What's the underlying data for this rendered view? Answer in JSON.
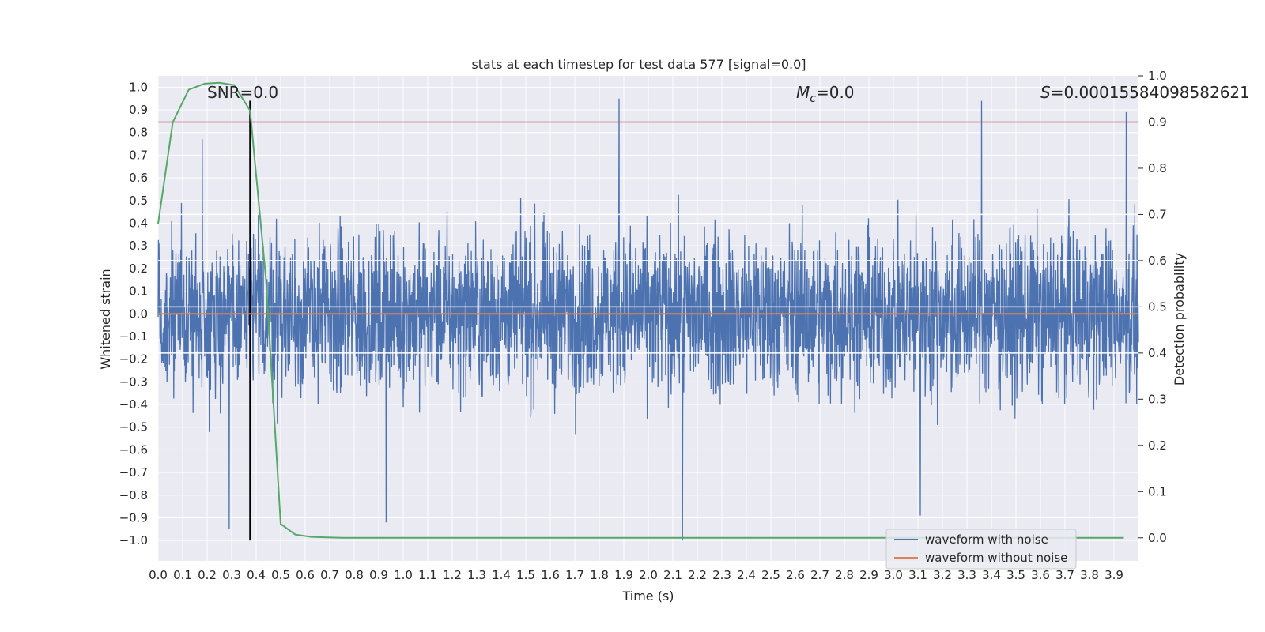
{
  "chart_data": {
    "type": "line",
    "title": "stats at each timestep for test data 577 [signal=0.0]",
    "xlabel": "Time (s)",
    "ylabel": "Whitened strain",
    "y2label": "Detection probability",
    "xlim": [
      0.0,
      4.0
    ],
    "ylim": [
      -1.09,
      1.05
    ],
    "y2lim": [
      -0.05,
      1.0
    ],
    "x_ticks": [
      "0.0",
      "0.1",
      "0.2",
      "0.3",
      "0.4",
      "0.5",
      "0.6",
      "0.7",
      "0.8",
      "0.9",
      "1.0",
      "1.1",
      "1.2",
      "1.3",
      "1.4",
      "1.5",
      "1.6",
      "1.7",
      "1.8",
      "1.9",
      "2.0",
      "2.1",
      "2.2",
      "2.3",
      "2.4",
      "2.5",
      "2.6",
      "2.7",
      "2.8",
      "2.9",
      "3.0",
      "3.1",
      "3.2",
      "3.3",
      "3.4",
      "3.5",
      "3.6",
      "3.7",
      "3.8",
      "3.9"
    ],
    "y_ticks": [
      "1.0",
      "0.9",
      "0.8",
      "0.7",
      "0.6",
      "0.5",
      "0.4",
      "0.3",
      "0.2",
      "0.1",
      "0.0",
      "−0.1",
      "−0.2",
      "−0.3",
      "−0.4",
      "−0.5",
      "−0.6",
      "−0.7",
      "−0.8",
      "−0.9",
      "−1.0"
    ],
    "y2_ticks": [
      "1.0",
      "0.9",
      "0.8",
      "0.7",
      "0.6",
      "0.5",
      "0.4",
      "0.3",
      "0.2",
      "0.1",
      "0.0"
    ],
    "grid": true,
    "legend_position": "lower-right",
    "annotations": {
      "snr": "SNR=0.0",
      "mc_symbol": "M",
      "mc_sub": "c",
      "mc_value": "=0.0",
      "s_symbol": "S",
      "s_value": "=0.00015584098582621"
    },
    "series": [
      {
        "name": "waveform with noise",
        "color": "#4c72b0",
        "axis": "left",
        "kind": "noise",
        "typical_range": [
          -0.45,
          0.45
        ],
        "peaks": [
          {
            "x": 0.18,
            "y": 0.77
          },
          {
            "x": 1.88,
            "y": 0.95
          },
          {
            "x": 3.36,
            "y": 0.94
          },
          {
            "x": 3.95,
            "y": 0.89
          },
          {
            "x": 0.29,
            "y": -0.95
          },
          {
            "x": 2.14,
            "y": -1.0
          },
          {
            "x": 3.11,
            "y": -0.89
          },
          {
            "x": 0.93,
            "y": -0.92
          }
        ]
      },
      {
        "name": "waveform without noise",
        "color": "#dd8452",
        "axis": "left",
        "x": [
          0.0,
          4.0
        ],
        "y": [
          0.0,
          0.0
        ]
      },
      {
        "name": "",
        "color": "#55a868",
        "axis": "right",
        "x": [
          0.0,
          0.06,
          0.125,
          0.19,
          0.25,
          0.31,
          0.375,
          0.44,
          0.5,
          0.56,
          0.625,
          0.69,
          0.75,
          1.0,
          2.0,
          3.0,
          3.94
        ],
        "y": [
          0.68,
          0.9,
          0.97,
          0.983,
          0.985,
          0.98,
          0.925,
          0.56,
          0.03,
          0.007,
          0.002,
          0.001,
          0.0,
          0.0,
          0.0,
          0.0,
          0.0
        ]
      }
    ],
    "hlines": [
      {
        "axis": "right",
        "y": 0.9,
        "color": "#c44e52"
      },
      {
        "axis": "right",
        "y": 0.6,
        "color": "#ffffff"
      },
      {
        "axis": "right",
        "y": 0.5,
        "color": "#ffffff"
      },
      {
        "axis": "right",
        "y": 0.4,
        "color": "#ffffff"
      },
      {
        "axis": "right",
        "y": 0.7,
        "color": "#ffffff"
      }
    ],
    "vlines": [
      {
        "x": 0.375,
        "y_from": -1.0,
        "y_to": 0.94,
        "color": "#000000"
      }
    ]
  }
}
